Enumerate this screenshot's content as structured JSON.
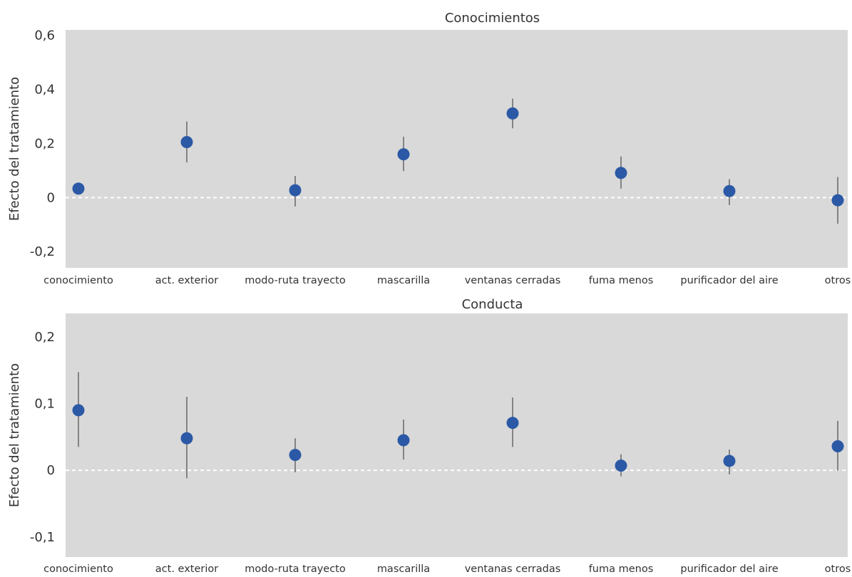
{
  "colors": {
    "panel_background": "#d9d9d9",
    "point": "#2b59a6",
    "errorbar": "#555555",
    "zero_line": "#ffffff"
  },
  "chart_data": [
    {
      "type": "scatter",
      "title": "Conocimientos",
      "xlabel": "",
      "ylabel": "Efecto del tratamiento",
      "ylim": [
        -0.26,
        0.62
      ],
      "yticks": [
        -0.2,
        0,
        0.2,
        0.4,
        0.6
      ],
      "ytick_labels": [
        "-0,2",
        "0",
        "0,2",
        "0,4",
        "0,6"
      ],
      "reference_line": 0,
      "grid": false,
      "categories": [
        "conocimiento",
        "act. exterior",
        "modo-ruta trayecto",
        "mascarilla",
        "ventanas cerradas",
        "fuma menos",
        "purificador del aire",
        "otros"
      ],
      "values": [
        0.033,
        0.205,
        0.027,
        0.16,
        0.311,
        0.091,
        0.024,
        -0.01
      ],
      "ci_low": [
        null,
        0.13,
        -0.033,
        0.098,
        0.256,
        0.033,
        -0.028,
        -0.097
      ],
      "ci_high": [
        null,
        0.281,
        0.08,
        0.225,
        0.366,
        0.152,
        0.068,
        0.076
      ]
    },
    {
      "type": "scatter",
      "title": "Conducta",
      "xlabel": "",
      "ylabel": "Efecto del tratamiento",
      "ylim": [
        -0.13,
        0.235
      ],
      "yticks": [
        -0.1,
        0,
        0.1,
        0.2
      ],
      "ytick_labels": [
        "-0,1",
        "0",
        "0,1",
        "0,2"
      ],
      "reference_line": 0,
      "grid": false,
      "categories": [
        "conocimiento",
        "act. exterior",
        "modo-ruta trayecto",
        "mascarilla",
        "ventanas cerradas",
        "fuma menos",
        "purificador del aire",
        "otros"
      ],
      "values": [
        0.09,
        0.048,
        0.023,
        0.045,
        0.071,
        0.007,
        0.014,
        0.036
      ],
      "ci_low": [
        0.035,
        -0.012,
        -0.003,
        0.016,
        0.035,
        -0.009,
        -0.006,
        -0.001
      ],
      "ci_high": [
        0.147,
        0.11,
        0.048,
        0.076,
        0.109,
        0.024,
        0.031,
        0.074
      ]
    }
  ]
}
